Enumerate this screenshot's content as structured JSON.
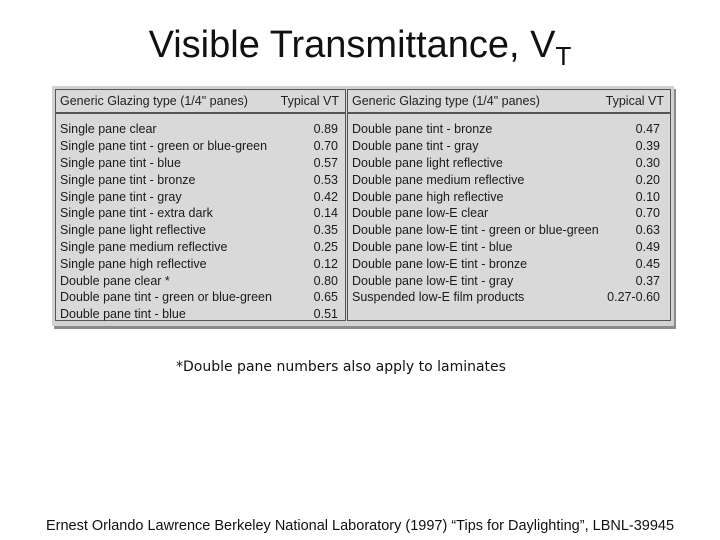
{
  "title": {
    "main": "Visible Transmittance, V",
    "subscript": "T"
  },
  "table": {
    "left": {
      "header": {
        "type": "Generic Glazing type (1/4\" panes)",
        "vt": "Typical VT"
      },
      "rows": [
        {
          "name": "Single pane clear",
          "vt": "0.89"
        },
        {
          "name": "Single pane tint - green or blue-green",
          "vt": "0.70"
        },
        {
          "name": "Single pane tint - blue",
          "vt": "0.57"
        },
        {
          "name": "Single pane tint - bronze",
          "vt": "0.53"
        },
        {
          "name": "Single pane tint - gray",
          "vt": "0.42"
        },
        {
          "name": "Single pane tint - extra dark",
          "vt": "0.14"
        },
        {
          "name": "Single pane light reflective",
          "vt": "0.35"
        },
        {
          "name": "Single pane medium reflective",
          "vt": "0.25"
        },
        {
          "name": "Single pane high reflective",
          "vt": "0.12"
        },
        {
          "name": "Double pane clear *",
          "vt": "0.80"
        },
        {
          "name": "Double pane tint - green or blue-green",
          "vt": "0.65"
        },
        {
          "name": "Double pane tint - blue",
          "vt": "0.51"
        }
      ]
    },
    "right": {
      "header": {
        "type": "Generic Glazing type (1/4\" panes)",
        "vt": "Typical VT"
      },
      "rows": [
        {
          "name": "Double pane tint - bronze",
          "vt": "0.47"
        },
        {
          "name": "Double pane tint - gray",
          "vt": "0.39"
        },
        {
          "name": "Double pane light reflective",
          "vt": "0.30"
        },
        {
          "name": "Double pane medium reflective",
          "vt": "0.20"
        },
        {
          "name": "Double pane high reflective",
          "vt": "0.10"
        },
        {
          "name": "Double pane low-E clear",
          "vt": "0.70"
        },
        {
          "name": "Double pane low-E tint - green or blue-green",
          "vt": "0.63"
        },
        {
          "name": "Double pane low-E tint - blue",
          "vt": "0.49"
        },
        {
          "name": "Double pane low-E tint - bronze",
          "vt": "0.45"
        },
        {
          "name": "Double pane low-E tint - gray",
          "vt": "0.37"
        },
        {
          "name": "Suspended low-E film products",
          "vt": "0.27-0.60"
        }
      ]
    }
  },
  "footnote": "*Double pane numbers also apply to laminates",
  "citation": "Ernest Orlando Lawrence Berkeley National Laboratory (1997) “Tips for Daylighting”, LBNL-39945"
}
